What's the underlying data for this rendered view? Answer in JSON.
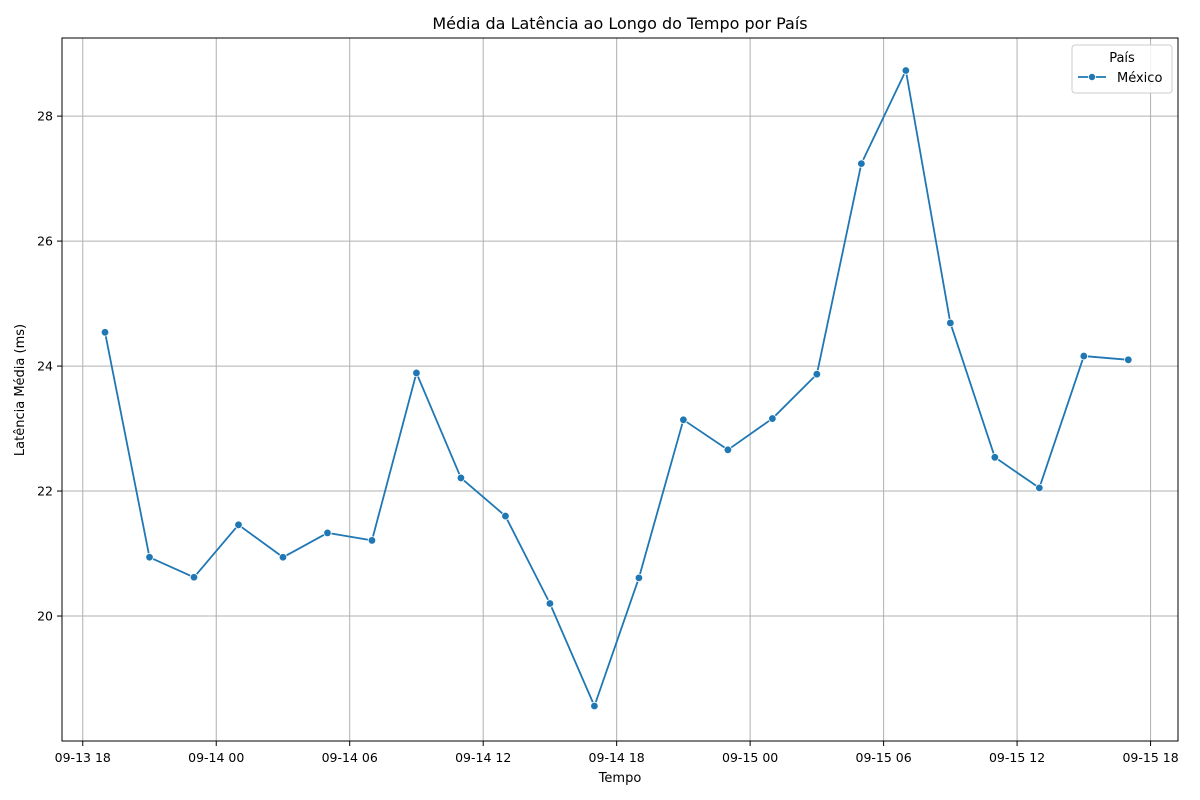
{
  "chart_data": {
    "type": "line",
    "title": "Média da Latência ao Longo do Tempo por País",
    "xlabel": "Tempo",
    "ylabel": "Latência Média (ms)",
    "x_ticks": [
      {
        "value": "2024-09-13T18:00",
        "label": "09-13 18"
      },
      {
        "value": "2024-09-14T00:00",
        "label": "09-14 00"
      },
      {
        "value": "2024-09-14T06:00",
        "label": "09-14 06"
      },
      {
        "value": "2024-09-14T12:00",
        "label": "09-14 12"
      },
      {
        "value": "2024-09-14T18:00",
        "label": "09-14 18"
      },
      {
        "value": "2024-09-15T00:00",
        "label": "09-15 00"
      },
      {
        "value": "2024-09-15T06:00",
        "label": "09-15 06"
      },
      {
        "value": "2024-09-15T12:00",
        "label": "09-15 12"
      },
      {
        "value": "2024-09-15T18:00",
        "label": "09-15 18"
      }
    ],
    "y_ticks": [
      20,
      22,
      24,
      26,
      28
    ],
    "xlim": [
      "2024-09-13T17:04",
      "2024-09-15T19:14"
    ],
    "ylim": [
      18.0,
      29.25
    ],
    "grid": true,
    "legend": {
      "title": "País",
      "placement": "top-right"
    },
    "series": [
      {
        "name": "México",
        "color": "#1f77b4",
        "marker": "circle",
        "x": [
          "2024-09-13T19:00",
          "2024-09-13T21:00",
          "2024-09-13T23:00",
          "2024-09-14T01:00",
          "2024-09-14T03:00",
          "2024-09-14T05:00",
          "2024-09-14T07:00",
          "2024-09-14T09:00",
          "2024-09-14T11:00",
          "2024-09-14T13:00",
          "2024-09-14T15:00",
          "2024-09-14T17:00",
          "2024-09-14T19:00",
          "2024-09-14T21:00",
          "2024-09-14T23:00",
          "2024-09-15T01:00",
          "2024-09-15T03:00",
          "2024-09-15T05:00",
          "2024-09-15T07:00",
          "2024-09-15T09:00",
          "2024-09-15T11:00",
          "2024-09-15T13:00",
          "2024-09-15T15:00",
          "2024-09-15T17:00"
        ],
        "y": [
          24.54,
          20.94,
          20.62,
          21.46,
          20.94,
          21.33,
          21.21,
          23.89,
          22.21,
          21.6,
          20.2,
          18.56,
          20.61,
          23.14,
          22.66,
          23.16,
          23.87,
          27.24,
          28.73,
          24.69,
          22.54,
          22.05,
          24.16,
          24.1
        ]
      }
    ]
  }
}
